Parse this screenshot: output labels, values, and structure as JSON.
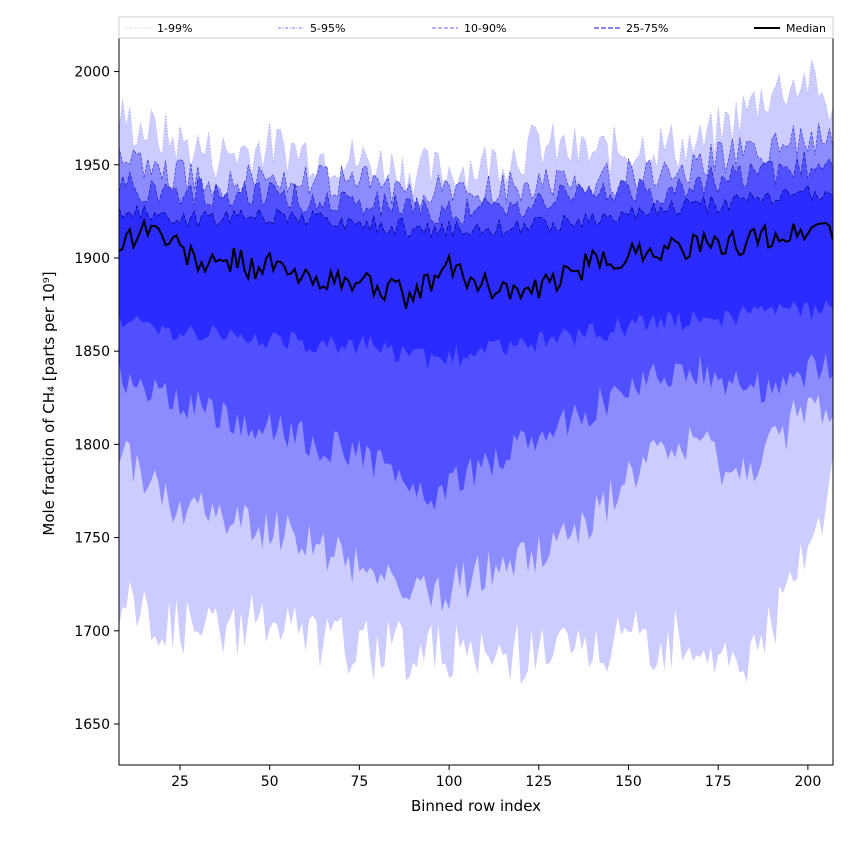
{
  "chart_data": {
    "type": "area",
    "xlabel": "Binned row index",
    "ylabel": "Mole fraction of CH₄ [parts per 10⁹]",
    "xlim": [
      8,
      207
    ],
    "ylim": [
      1628,
      2018
    ],
    "x_ticks": [
      25,
      50,
      75,
      100,
      125,
      150,
      175,
      200
    ],
    "y_ticks": [
      1650,
      1700,
      1750,
      1800,
      1850,
      1900,
      1950,
      2000
    ],
    "legend_position": "top, spanning width",
    "legend": [
      {
        "label": "1-99%",
        "style": "dotted",
        "color": "#d8d8ff"
      },
      {
        "label": "5-95%",
        "style": "dash-dot",
        "color": "#7a7aff"
      },
      {
        "label": "10-90%",
        "style": "dashed",
        "color": "#6464ff"
      },
      {
        "label": "25-75%",
        "style": "dashed",
        "color": "#3c3cf0"
      },
      {
        "label": "Median",
        "style": "solid",
        "color": "#000000"
      }
    ],
    "bands": [
      {
        "name": "1-99%",
        "color": "#ccccff",
        "x": [
          8,
          20,
          35,
          50,
          65,
          80,
          95,
          110,
          125,
          140,
          155,
          170,
          180,
          190,
          200,
          207
        ],
        "lower": [
          1715,
          1705,
          1700,
          1705,
          1695,
          1690,
          1690,
          1685,
          1690,
          1690,
          1695,
          1695,
          1680,
          1705,
          1740,
          1780
        ],
        "upper": [
          1975,
          1965,
          1955,
          1960,
          1955,
          1950,
          1945,
          1950,
          1960,
          1955,
          1960,
          1960,
          1975,
          1990,
          1995,
          1980
        ]
      },
      {
        "name": "5-95%",
        "color": "#8c8cff",
        "x": [
          8,
          20,
          35,
          50,
          65,
          80,
          95,
          110,
          125,
          140,
          155,
          170,
          180,
          190,
          200,
          207
        ],
        "lower": [
          1800,
          1770,
          1760,
          1755,
          1745,
          1730,
          1720,
          1730,
          1740,
          1760,
          1790,
          1800,
          1780,
          1800,
          1820,
          1815
        ],
        "upper": [
          1955,
          1945,
          1940,
          1945,
          1940,
          1940,
          1935,
          1935,
          1940,
          1940,
          1945,
          1950,
          1955,
          1960,
          1965,
          1960
        ]
      },
      {
        "name": "10-90%",
        "color": "#5050ff",
        "x": [
          8,
          20,
          35,
          50,
          65,
          80,
          95,
          110,
          125,
          140,
          155,
          170,
          180,
          190,
          200,
          207
        ],
        "lower": [
          1835,
          1830,
          1815,
          1810,
          1800,
          1790,
          1770,
          1790,
          1805,
          1820,
          1835,
          1840,
          1830,
          1830,
          1840,
          1845
        ],
        "upper": [
          1940,
          1935,
          1935,
          1935,
          1930,
          1930,
          1925,
          1925,
          1930,
          1935,
          1935,
          1940,
          1945,
          1945,
          1950,
          1950
        ]
      },
      {
        "name": "25-75%",
        "color": "#2b2bff",
        "x": [
          8,
          20,
          35,
          50,
          65,
          80,
          95,
          110,
          125,
          140,
          155,
          170,
          180,
          190,
          200,
          207
        ],
        "lower": [
          1865,
          1862,
          1858,
          1855,
          1855,
          1852,
          1845,
          1850,
          1855,
          1860,
          1865,
          1868,
          1868,
          1870,
          1872,
          1872
        ],
        "upper": [
          1925,
          1922,
          1920,
          1922,
          1920,
          1918,
          1915,
          1915,
          1918,
          1920,
          1925,
          1928,
          1930,
          1932,
          1935,
          1935
        ]
      }
    ],
    "median": {
      "name": "Median",
      "x": [
        8,
        12,
        16,
        20,
        25,
        30,
        35,
        40,
        45,
        50,
        55,
        60,
        65,
        70,
        75,
        80,
        85,
        90,
        95,
        100,
        105,
        110,
        115,
        120,
        125,
        130,
        135,
        140,
        145,
        150,
        155,
        160,
        165,
        170,
        175,
        180,
        185,
        190,
        195,
        200,
        205,
        207
      ],
      "y": [
        1908,
        1912,
        1918,
        1912,
        1905,
        1898,
        1895,
        1900,
        1895,
        1897,
        1892,
        1888,
        1890,
        1885,
        1888,
        1885,
        1882,
        1878,
        1888,
        1895,
        1890,
        1885,
        1885,
        1880,
        1882,
        1888,
        1893,
        1897,
        1898,
        1902,
        1905,
        1905,
        1906,
        1907,
        1905,
        1908,
        1910,
        1912,
        1912,
        1915,
        1918,
        1915
      ]
    }
  }
}
